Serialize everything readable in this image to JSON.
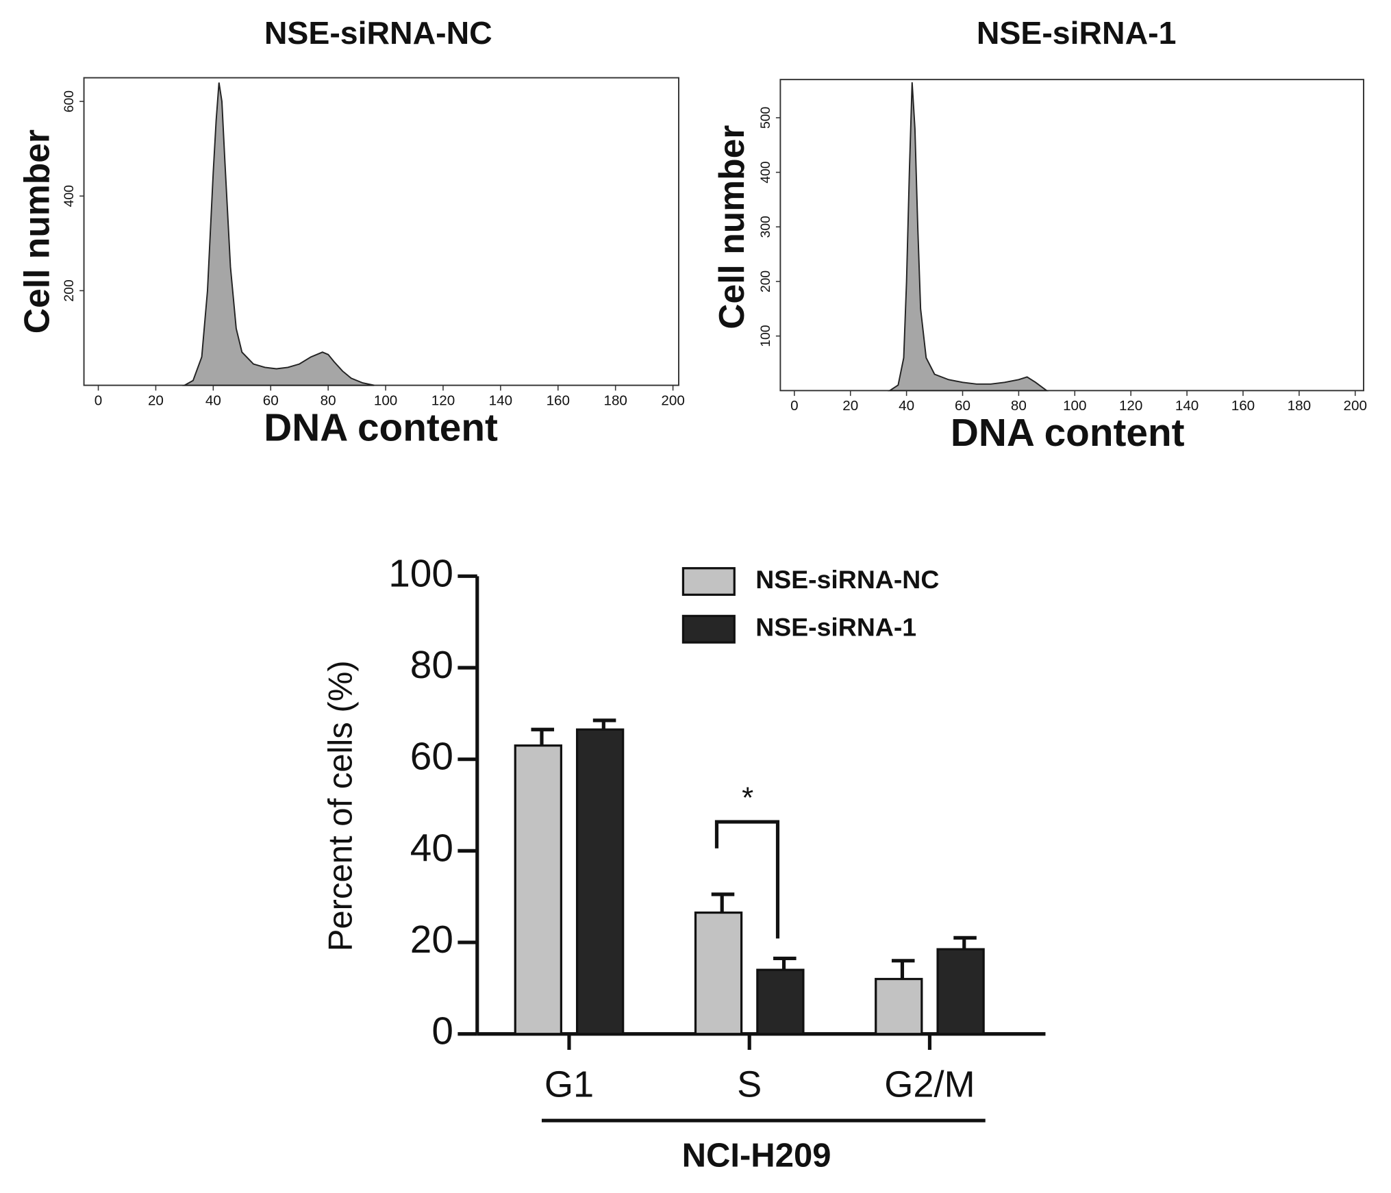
{
  "chart_data": [
    {
      "type": "area",
      "title": "NSE-siRNA-NC",
      "x_label": "DNA content",
      "y_label": "Cell number",
      "color": "#a6a6a6",
      "x": [
        30,
        33,
        36,
        38,
        40,
        41,
        42,
        43,
        44,
        46,
        48,
        50,
        54,
        58,
        62,
        66,
        70,
        74,
        78,
        80,
        82,
        85,
        88,
        92,
        96
      ],
      "values": [
        0,
        10,
        60,
        200,
        450,
        560,
        640,
        600,
        480,
        250,
        120,
        70,
        45,
        38,
        35,
        38,
        45,
        60,
        70,
        65,
        50,
        30,
        15,
        5,
        0
      ],
      "xlim": [
        -5,
        202
      ],
      "ylim": [
        0,
        650
      ],
      "xticks": [
        0,
        20,
        40,
        60,
        80,
        100,
        120,
        140,
        160,
        180,
        200
      ],
      "yticks": [
        200,
        400,
        600
      ]
    },
    {
      "type": "area",
      "title": "NSE-siRNA-1",
      "x_label": "DNA content",
      "y_label": "Cell number",
      "color": "#a6a6a6",
      "x": [
        34,
        37,
        39,
        40,
        41,
        42,
        43,
        44,
        45,
        47,
        50,
        55,
        60,
        65,
        70,
        75,
        80,
        83,
        86,
        90
      ],
      "values": [
        0,
        10,
        60,
        200,
        400,
        565,
        480,
        300,
        150,
        60,
        30,
        20,
        15,
        12,
        12,
        15,
        20,
        25,
        15,
        0
      ],
      "xlim": [
        -5,
        203
      ],
      "ylim": [
        0,
        570
      ],
      "xticks": [
        0,
        20,
        40,
        60,
        80,
        100,
        120,
        140,
        160,
        180,
        200
      ],
      "yticks": [
        100,
        200,
        300,
        400,
        500
      ]
    },
    {
      "type": "bar",
      "y_label": "Percent of cells (%)",
      "group_label": "NCI-H209",
      "annotation": "*",
      "categories": [
        "G1",
        "S",
        "G2/M"
      ],
      "series": [
        {
          "name": "NSE-siRNA-NC",
          "color": "#c2c2c2",
          "values": [
            63,
            26.5,
            12
          ],
          "errors": [
            3.5,
            4,
            4
          ]
        },
        {
          "name": "NSE-siRNA-1",
          "color": "#262626",
          "values": [
            66.5,
            14,
            18.5
          ],
          "errors": [
            2,
            2.5,
            2.5
          ]
        }
      ],
      "ylim": [
        0,
        100
      ],
      "yticks": [
        0,
        20,
        40,
        60,
        80,
        100
      ]
    }
  ]
}
